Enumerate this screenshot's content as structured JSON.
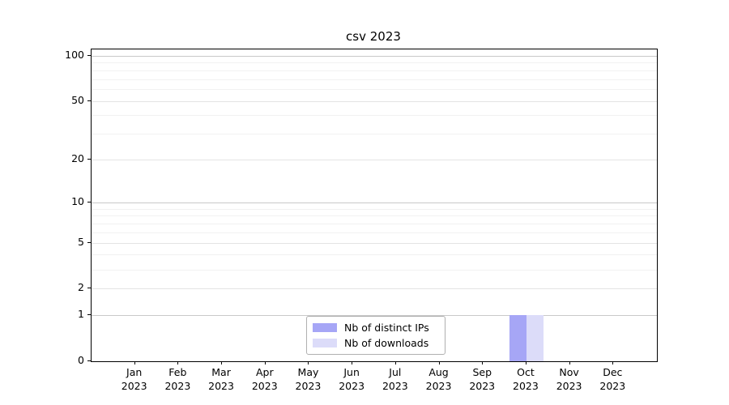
{
  "chart_data": {
    "type": "bar",
    "title": "csv 2023",
    "categories": [
      {
        "month": "Jan",
        "year": "2023"
      },
      {
        "month": "Feb",
        "year": "2023"
      },
      {
        "month": "Mar",
        "year": "2023"
      },
      {
        "month": "Apr",
        "year": "2023"
      },
      {
        "month": "May",
        "year": "2023"
      },
      {
        "month": "Jun",
        "year": "2023"
      },
      {
        "month": "Jul",
        "year": "2023"
      },
      {
        "month": "Aug",
        "year": "2023"
      },
      {
        "month": "Sep",
        "year": "2023"
      },
      {
        "month": "Oct",
        "year": "2023"
      },
      {
        "month": "Nov",
        "year": "2023"
      },
      {
        "month": "Dec",
        "year": "2023"
      }
    ],
    "series": [
      {
        "name": "Nb of distinct IPs",
        "color": "#a6a6f6",
        "values": [
          0,
          0,
          0,
          0,
          0,
          0,
          0,
          0,
          0,
          1,
          0,
          0
        ]
      },
      {
        "name": "Nb of downloads",
        "color": "#dcdcf9",
        "values": [
          0,
          0,
          0,
          0,
          0,
          0,
          0,
          0,
          0,
          1,
          0,
          0
        ]
      }
    ],
    "y_axis": {
      "scale": "log1p",
      "max": 110,
      "major_ticks": [
        0,
        1,
        2,
        5,
        10,
        20,
        50,
        100
      ],
      "emphasized_ticks": [
        1,
        10,
        100
      ],
      "minor_ticks": [
        3,
        4,
        6,
        7,
        8,
        9,
        30,
        40,
        60,
        70,
        80,
        90
      ]
    },
    "xlabel": "",
    "ylabel": "",
    "grid": true,
    "legend": {
      "position": "lower center"
    }
  }
}
